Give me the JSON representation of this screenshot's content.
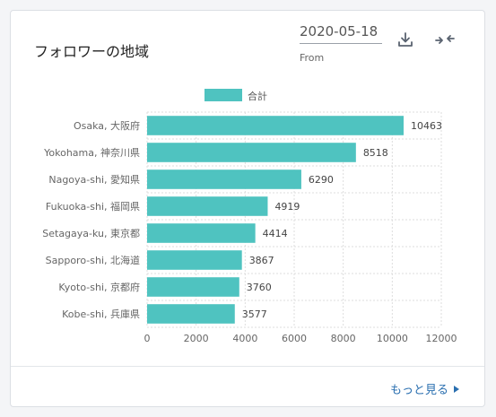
{
  "card": {
    "title": "フォロワーの地域",
    "date_value": "2020-05-18",
    "date_label": "From",
    "download_icon": "download-icon",
    "compress_icon": "compress-arrows-icon",
    "more_link": "もっと見る"
  },
  "colors": {
    "bar": "#4fc3c0",
    "grid": "#dddddd",
    "axis_text": "#666666",
    "link": "#2a6fb0"
  },
  "chart_data": {
    "type": "bar",
    "orientation": "horizontal",
    "categories": [
      "Osaka, 大阪府",
      "Yokohama, 神奈川県",
      "Nagoya-shi, 愛知県",
      "Fukuoka-shi, 福岡県",
      "Setagaya-ku, 東京都",
      "Sapporo-shi, 北海道",
      "Kyoto-shi, 京都府",
      "Kobe-shi, 兵庫県"
    ],
    "series": [
      {
        "name": "合計",
        "values": [
          10463,
          8518,
          6290,
          4919,
          4414,
          3867,
          3760,
          3577
        ]
      }
    ],
    "xlim": [
      0,
      12000
    ],
    "xticks": [
      "0",
      "2000",
      "4000",
      "6000",
      "8000",
      "10000",
      "12000"
    ],
    "grid": true,
    "legend": "top-center",
    "data_labels": true
  }
}
